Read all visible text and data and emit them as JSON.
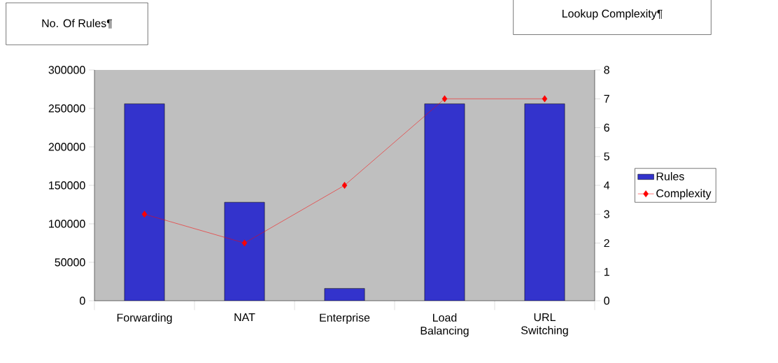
{
  "chart_data": {
    "type": "bar",
    "categories": [
      "Forwarding",
      "NAT",
      "Enterprise",
      "Load Balancing",
      "URL Switching"
    ],
    "ylabel": "No. Of Rules¶",
    "y2label": "Lookup Complexity¶",
    "ylim": [
      0,
      300000
    ],
    "yticks": [
      0,
      50000,
      100000,
      150000,
      200000,
      250000,
      300000
    ],
    "y2lim": [
      0,
      8
    ],
    "y2ticks": [
      0,
      1,
      2,
      3,
      4,
      5,
      6,
      7,
      8
    ],
    "legend": "right",
    "grid": false,
    "series": [
      {
        "name": "Rules",
        "color": "#3333cc",
        "values": [
          256000,
          128000,
          16000,
          256000,
          256000
        ]
      },
      {
        "name": "Complexity",
        "type": "line",
        "axis": "y2",
        "color": "#ff0000",
        "marker": "diamond",
        "values": [
          3,
          2,
          4,
          7,
          7
        ]
      }
    ]
  }
}
